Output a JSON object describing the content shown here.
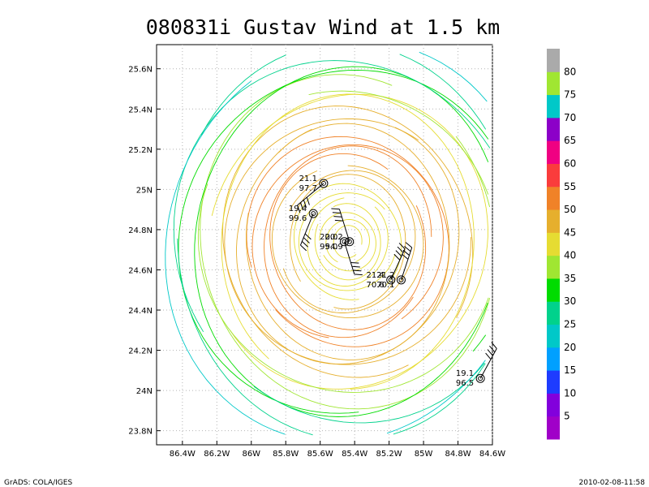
{
  "chart_data": {
    "type": "streamline",
    "title": "080831i Gustav Wind at 1.5 km",
    "xlabel": "",
    "ylabel": "",
    "xlim": [
      -86.55,
      -84.6
    ],
    "ylim": [
      23.73,
      25.72
    ],
    "grid": true,
    "x_ticks": [
      -86.4,
      -86.2,
      -86.0,
      -85.8,
      -85.6,
      -85.4,
      -85.2,
      -85.0,
      -84.8,
      -84.6
    ],
    "x_tick_labels": [
      "86.4W",
      "86.2W",
      "86W",
      "85.8W",
      "85.6W",
      "85.4W",
      "85.2W",
      "85W",
      "84.8W",
      "84.6W"
    ],
    "y_ticks": [
      23.8,
      24.0,
      24.2,
      24.4,
      24.6,
      24.8,
      25.0,
      25.2,
      25.4,
      25.6
    ],
    "y_tick_labels": [
      "23.8N",
      "24N",
      "24.2N",
      "24.4N",
      "24.6N",
      "24.8N",
      "25N",
      "25.2N",
      "25.4N",
      "25.6N"
    ],
    "storm_center": {
      "lon": -85.44,
      "lat": 24.74
    },
    "colorbar": {
      "labels": [
        "5",
        "10",
        "15",
        "20",
        "25",
        "30",
        "35",
        "40",
        "45",
        "50",
        "55",
        "60",
        "65",
        "70",
        "75",
        "80"
      ],
      "colors": [
        "#a000c8",
        "#8200dc",
        "#1e3cff",
        "#00a0ff",
        "#00c8c8",
        "#00d28c",
        "#00dc00",
        "#a0e632",
        "#e6dc32",
        "#e6af2d",
        "#f08228",
        "#fa3c3c",
        "#f00082",
        "#8c00c8",
        "#00c8c8",
        "#a0e632",
        "#aaaaaa"
      ]
    },
    "observations": [
      {
        "lon": -85.58,
        "lat": 25.03,
        "top": "21.1",
        "bottom": "97.7"
      },
      {
        "lon": -85.64,
        "lat": 24.88,
        "top": "19.4",
        "bottom": "99.6"
      },
      {
        "lon": -85.46,
        "lat": 24.74,
        "top": "20.0",
        "bottom": "95.0"
      },
      {
        "lon": -85.43,
        "lat": 24.74,
        "top": "20.2",
        "bottom": "94.9"
      },
      {
        "lon": -85.19,
        "lat": 24.55,
        "top": "21.4",
        "bottom": "70.6"
      },
      {
        "lon": -85.13,
        "lat": 24.55,
        "top": "21.2",
        "bottom": "70.1"
      },
      {
        "lon": -84.67,
        "lat": 24.06,
        "top": "19.1",
        "bottom": "96.5"
      }
    ]
  },
  "footer": {
    "left": "GrADS: COLA/IGES",
    "right": "2010-02-08-11:58"
  }
}
